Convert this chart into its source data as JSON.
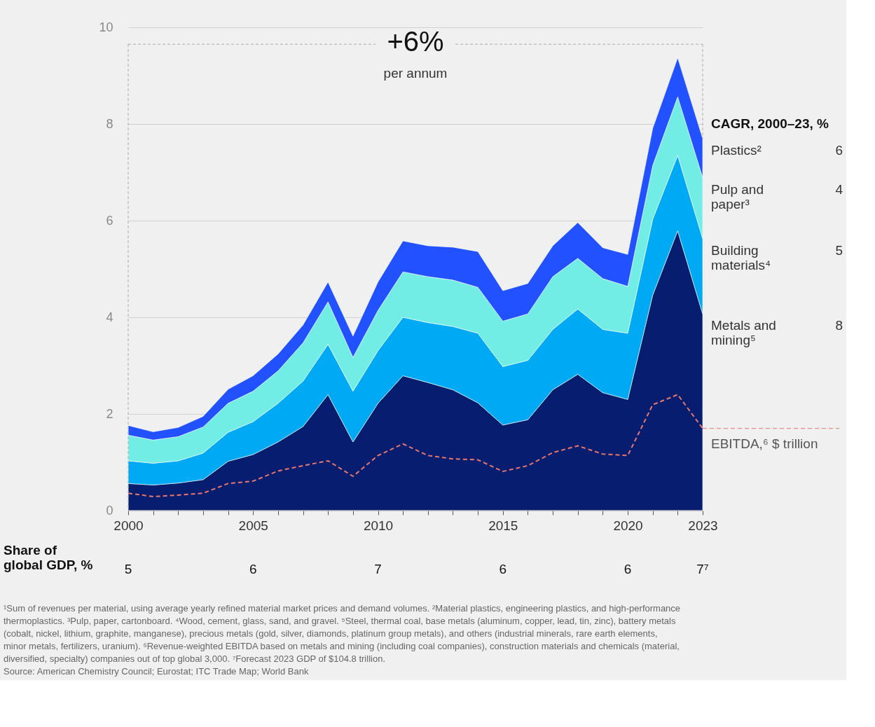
{
  "chart_data": {
    "type": "area",
    "stacked": true,
    "x": [
      2000,
      2001,
      2002,
      2003,
      2004,
      2005,
      2006,
      2007,
      2008,
      2009,
      2010,
      2011,
      2012,
      2013,
      2014,
      2015,
      2016,
      2017,
      2018,
      2019,
      2020,
      2021,
      2022,
      2023
    ],
    "series": [
      {
        "name": "Metals and mining⁵",
        "color": "#061d70",
        "values": [
          0.56,
          0.53,
          0.57,
          0.64,
          1.02,
          1.16,
          1.42,
          1.74,
          2.4,
          1.42,
          2.22,
          2.79,
          2.65,
          2.5,
          2.23,
          1.77,
          1.88,
          2.5,
          2.82,
          2.44,
          2.3,
          4.46,
          5.79,
          4.07
        ]
      },
      {
        "name": "Building materials⁴",
        "color": "#00a9f4",
        "values": [
          0.47,
          0.45,
          0.46,
          0.55,
          0.6,
          0.68,
          0.8,
          0.94,
          1.04,
          1.05,
          1.09,
          1.21,
          1.24,
          1.31,
          1.44,
          1.21,
          1.23,
          1.25,
          1.35,
          1.31,
          1.37,
          1.57,
          1.56,
          1.56
        ]
      },
      {
        "name": "Pulp and paper³",
        "color": "#72ede6",
        "values": [
          0.53,
          0.48,
          0.5,
          0.54,
          0.6,
          0.63,
          0.67,
          0.79,
          0.88,
          0.7,
          0.83,
          0.94,
          0.95,
          0.96,
          0.95,
          0.94,
          0.96,
          1.09,
          1.05,
          1.05,
          0.97,
          1.11,
          1.21,
          1.26
        ]
      },
      {
        "name": "Plastics²",
        "color": "#2251ff",
        "values": [
          0.2,
          0.17,
          0.19,
          0.22,
          0.29,
          0.32,
          0.35,
          0.37,
          0.41,
          0.44,
          0.59,
          0.64,
          0.64,
          0.68,
          0.74,
          0.63,
          0.63,
          0.64,
          0.74,
          0.64,
          0.66,
          0.77,
          0.81,
          0.81
        ]
      },
      {
        "name": "EBITDA,⁶ $ trillion",
        "type": "line",
        "line_style": "dashed",
        "color": "#e8776e",
        "values": [
          0.36,
          0.29,
          0.32,
          0.36,
          0.56,
          0.61,
          0.82,
          0.93,
          1.03,
          0.71,
          1.14,
          1.38,
          1.14,
          1.07,
          1.05,
          0.81,
          0.93,
          1.2,
          1.34,
          1.17,
          1.14,
          2.19,
          2.4,
          1.7
        ]
      }
    ],
    "legend_title": "CAGR, 2000–23, %",
    "xlim": [
      2000,
      2023
    ],
    "xticks": [
      2000,
      {
        "value": 2001,
        "label": null
      },
      {
        "value": 2002,
        "label": null
      },
      {
        "value": 2003,
        "label": null
      },
      {
        "value": 2004,
        "label": null
      },
      2005,
      {
        "value": 2006,
        "label": null
      },
      {
        "value": 2007,
        "label": null
      },
      {
        "value": 2008,
        "label": null
      },
      {
        "value": 2009,
        "label": null
      },
      2010,
      {
        "value": 2011,
        "label": null
      },
      {
        "value": 2012,
        "label": null
      },
      {
        "value": 2013,
        "label": null
      },
      {
        "value": 2014,
        "label": null
      },
      2015,
      {
        "value": 2016,
        "label": null
      },
      {
        "value": 2017,
        "label": null
      },
      {
        "value": 2018,
        "label": null
      },
      {
        "value": 2019,
        "label": null
      },
      2020,
      {
        "value": 2021,
        "label": null
      },
      {
        "value": 2022,
        "label": null
      },
      2023
    ],
    "ylim": [
      0,
      10
    ],
    "yticks": [
      0,
      2,
      4,
      6,
      8,
      10
    ],
    "grid": "y",
    "legend": "right",
    "annotations": [
      "+6%",
      "per annum",
      "6",
      "4",
      "5",
      "8",
      "Share of global GDP, %",
      "5",
      "6",
      "7",
      "6",
      "6",
      "7⁷",
      "¹Sum of revenues per material, using average yearly refined material market prices and demand volumes. ²Material plastics, engineering plastics, and high-performance thermoplastics. ³Pulp, paper, cartonboard. ⁴Wood, cement, glass, sand, and gravel. ⁵Steel, thermal coal, base metals (aluminum, copper, lead, tin, zinc), battery metals (cobalt, nickel, lithium, graphite, manganese), precious metals (gold, silver, diamonds, platinum group metals), and others (industrial minerals, rare earth elements, minor metals, fertilizers, uranium). ⁶Revenue-weighted EBITDA based on metals and mining (including coal companies), construction materials and chemicals (material, diversified, specialty) companies out of top global 3,000. ⁷Forecast 2023 GDP of $104.8 trillion.",
      "Source: American Chemistry Council; Eurostat; ITC Trade Map; World Bank"
    ]
  }
}
